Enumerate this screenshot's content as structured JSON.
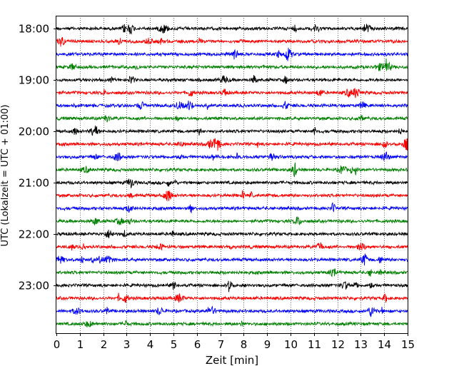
{
  "chart_data": {
    "type": "line",
    "subtype": "seismogram-helicorder",
    "title": "",
    "xlabel": "Zeit  [min]",
    "ylabel": "UTC (Lokalzeit = UTC + 01:00)",
    "xlim": [
      0,
      15
    ],
    "x_ticks": [
      "0",
      "1",
      "2",
      "3",
      "4",
      "5",
      "6",
      "7",
      "8",
      "9",
      "10",
      "11",
      "12",
      "13",
      "14",
      "15"
    ],
    "y_ticks": [
      "18:00",
      "19:00",
      "20:00",
      "21:00",
      "22:00",
      "23:00"
    ],
    "grid": "vertical dotted lines at each minute",
    "trace_interval_minutes": 15,
    "trace_color_cycle": [
      "#000000",
      "#ff0000",
      "#0000ff",
      "#008000"
    ],
    "traces": [
      {
        "start": "18:00",
        "color": "#000000"
      },
      {
        "start": "18:15",
        "color": "#ff0000"
      },
      {
        "start": "18:30",
        "color": "#0000ff"
      },
      {
        "start": "18:45",
        "color": "#008000"
      },
      {
        "start": "19:00",
        "color": "#000000"
      },
      {
        "start": "19:15",
        "color": "#ff0000"
      },
      {
        "start": "19:30",
        "color": "#0000ff"
      },
      {
        "start": "19:45",
        "color": "#008000"
      },
      {
        "start": "20:00",
        "color": "#000000"
      },
      {
        "start": "20:15",
        "color": "#ff0000"
      },
      {
        "start": "20:30",
        "color": "#0000ff"
      },
      {
        "start": "20:45",
        "color": "#008000"
      },
      {
        "start": "21:00",
        "color": "#000000"
      },
      {
        "start": "21:15",
        "color": "#ff0000"
      },
      {
        "start": "21:30",
        "color": "#0000ff"
      },
      {
        "start": "21:45",
        "color": "#008000"
      },
      {
        "start": "22:00",
        "color": "#000000"
      },
      {
        "start": "22:15",
        "color": "#ff0000"
      },
      {
        "start": "22:30",
        "color": "#0000ff"
      },
      {
        "start": "22:45",
        "color": "#008000"
      },
      {
        "start": "23:00",
        "color": "#000000"
      },
      {
        "start": "23:15",
        "color": "#ff0000"
      },
      {
        "start": "23:30",
        "color": "#0000ff"
      },
      {
        "start": "23:45",
        "color": "#008000"
      }
    ]
  }
}
